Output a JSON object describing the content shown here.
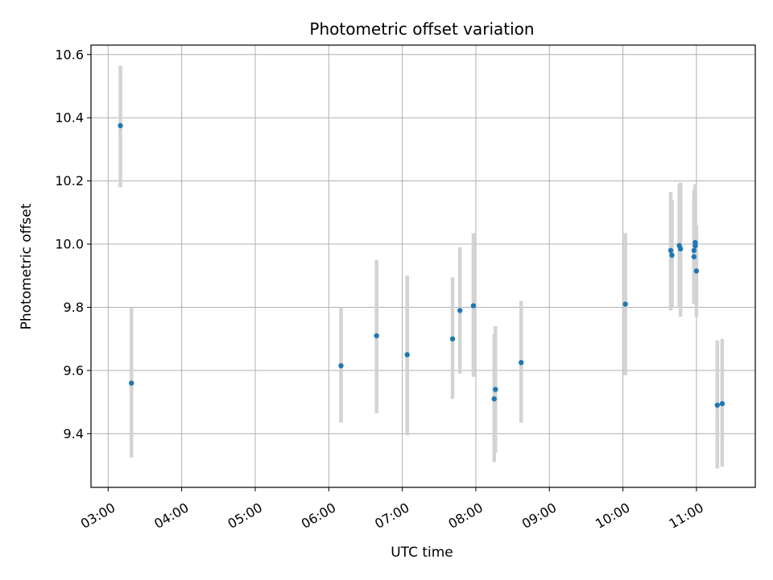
{
  "chart_data": {
    "type": "scatter",
    "title": "Photometric offset variation",
    "xlabel": "UTC time",
    "ylabel": "Photometric offset",
    "x_ticks": [
      "03:00",
      "04:00",
      "05:00",
      "06:00",
      "07:00",
      "08:00",
      "09:00",
      "10:00",
      "11:00"
    ],
    "y_ticks": [
      "9.4",
      "9.6",
      "9.8",
      "10.0",
      "10.2",
      "10.4",
      "10.6"
    ],
    "xlim": [
      "02:46",
      "11:48"
    ],
    "ylim": [
      9.23,
      10.63
    ],
    "grid": true,
    "point_color": "#1f77b4",
    "errorbar_color": "#d3d3d3",
    "points": [
      {
        "t": "03:10",
        "y": 10.375,
        "lo": 10.18,
        "hi": 10.565
      },
      {
        "t": "03:19",
        "y": 9.56,
        "lo": 9.325,
        "hi": 9.8
      },
      {
        "t": "06:10",
        "y": 9.615,
        "lo": 9.435,
        "hi": 9.8
      },
      {
        "t": "06:39",
        "y": 9.71,
        "lo": 9.465,
        "hi": 9.95
      },
      {
        "t": "07:04",
        "y": 9.65,
        "lo": 9.395,
        "hi": 9.9
      },
      {
        "t": "07:41",
        "y": 9.7,
        "lo": 9.51,
        "hi": 9.895
      },
      {
        "t": "07:47",
        "y": 9.79,
        "lo": 9.59,
        "hi": 9.99
      },
      {
        "t": "07:58",
        "y": 9.805,
        "lo": 9.58,
        "hi": 10.035
      },
      {
        "t": "08:15",
        "y": 9.51,
        "lo": 9.31,
        "hi": 9.715
      },
      {
        "t": "08:16",
        "y": 9.54,
        "lo": 9.34,
        "hi": 9.74
      },
      {
        "t": "08:37",
        "y": 9.625,
        "lo": 9.435,
        "hi": 9.82
      },
      {
        "t": "10:02",
        "y": 9.81,
        "lo": 9.585,
        "hi": 10.035
      },
      {
        "t": "10:39",
        "y": 9.98,
        "lo": 9.79,
        "hi": 10.165
      },
      {
        "t": "10:40",
        "y": 9.965,
        "lo": 9.8,
        "hi": 10.14
      },
      {
        "t": "10:46",
        "y": 9.995,
        "lo": 9.8,
        "hi": 10.19
      },
      {
        "t": "10:47",
        "y": 9.985,
        "lo": 9.77,
        "hi": 10.195
      },
      {
        "t": "10:58",
        "y": 9.96,
        "lo": 9.81,
        "hi": 10.13
      },
      {
        "t": "10:58",
        "y": 9.98,
        "lo": 9.81,
        "hi": 10.17
      },
      {
        "t": "10:59",
        "y": 9.995,
        "lo": 9.81,
        "hi": 10.18
      },
      {
        "t": "10:59",
        "y": 10.005,
        "lo": 9.81,
        "hi": 10.19
      },
      {
        "t": "11:00",
        "y": 9.915,
        "lo": 9.77,
        "hi": 10.06
      },
      {
        "t": "11:17",
        "y": 9.49,
        "lo": 9.29,
        "hi": 9.695
      },
      {
        "t": "11:21",
        "y": 9.495,
        "lo": 9.295,
        "hi": 9.7
      }
    ]
  }
}
